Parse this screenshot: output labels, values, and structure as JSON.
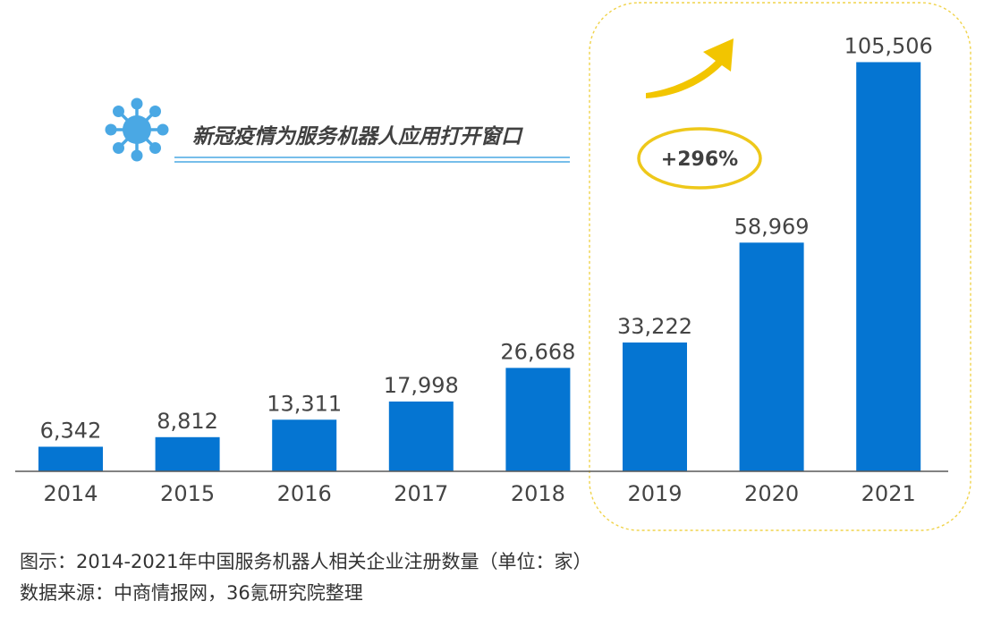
{
  "chart_data": {
    "type": "bar",
    "categories": [
      "2014",
      "2015",
      "2016",
      "2017",
      "2018",
      "2019",
      "2020",
      "2021"
    ],
    "values": [
      6342,
      8812,
      13311,
      17998,
      26668,
      33222,
      58969,
      105506
    ],
    "value_labels": [
      "6,342",
      "8,812",
      "13,311",
      "17,998",
      "26,668",
      "33,222",
      "58,969",
      "105,506"
    ],
    "ylim": [
      0,
      110000
    ],
    "grid": false,
    "highlight_categories": [
      "2019",
      "2020",
      "2021"
    ],
    "annotation": {
      "headline": "新冠疫情为服务机器人应用打开窗口",
      "growth": "+296%"
    }
  },
  "caption": "图示：2014-2021年中国服务机器人相关企业注册数量（单位：家）",
  "source": "数据来源：中商情报网，36氪研究院整理",
  "colors": {
    "bar": "#0575D2",
    "virus_icon": "#4AA8E4",
    "arrow": "#F2C500",
    "ellipse": "#EEC81A",
    "highlight_box": "#F0D34A",
    "divider": "#4AA8E4",
    "axis": "#595959"
  },
  "icons": [
    "virus-icon",
    "up-arrow-icon"
  ]
}
